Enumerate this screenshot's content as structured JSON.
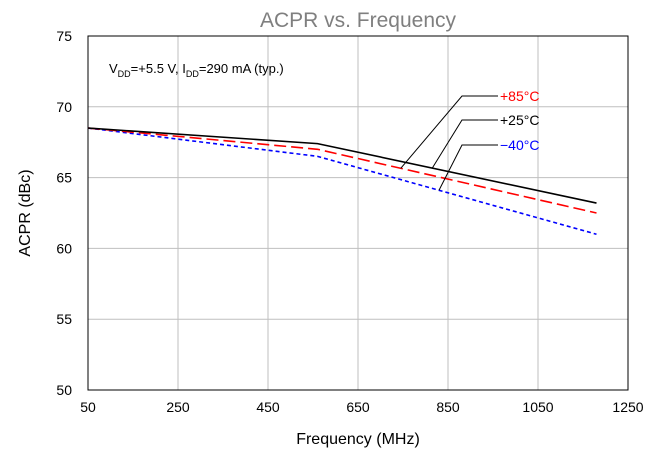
{
  "chart_data": {
    "type": "line",
    "title": "ACPR vs. Frequency",
    "xlabel": "Frequency (MHz)",
    "ylabel": "ACPR (dBc)",
    "xlim": [
      50,
      1250
    ],
    "ylim": [
      50,
      75
    ],
    "xticks": [
      50,
      250,
      450,
      650,
      850,
      1050,
      1250
    ],
    "yticks": [
      50,
      55,
      60,
      65,
      70,
      75
    ],
    "grid": true,
    "annotation": {
      "prefix": "V",
      "sub1": "DD",
      "mid": "=+5.5 V, I",
      "sub2": "DD",
      "suffix": "=290 mA (typ.)"
    },
    "series": [
      {
        "name": "+85°C",
        "color": "#ff0000",
        "dash": "dashed",
        "x": [
          50,
          560,
          1180
        ],
        "y": [
          68.5,
          67.0,
          62.5
        ]
      },
      {
        "name": "+25°C",
        "color": "#000000",
        "dash": "solid",
        "x": [
          50,
          560,
          1180
        ],
        "y": [
          68.5,
          67.4,
          63.2
        ]
      },
      {
        "name": "−40°C",
        "color": "#0000ff",
        "dash": "dotted",
        "x": [
          50,
          560,
          1180
        ],
        "y": [
          68.5,
          66.5,
          61.0
        ]
      }
    ]
  }
}
